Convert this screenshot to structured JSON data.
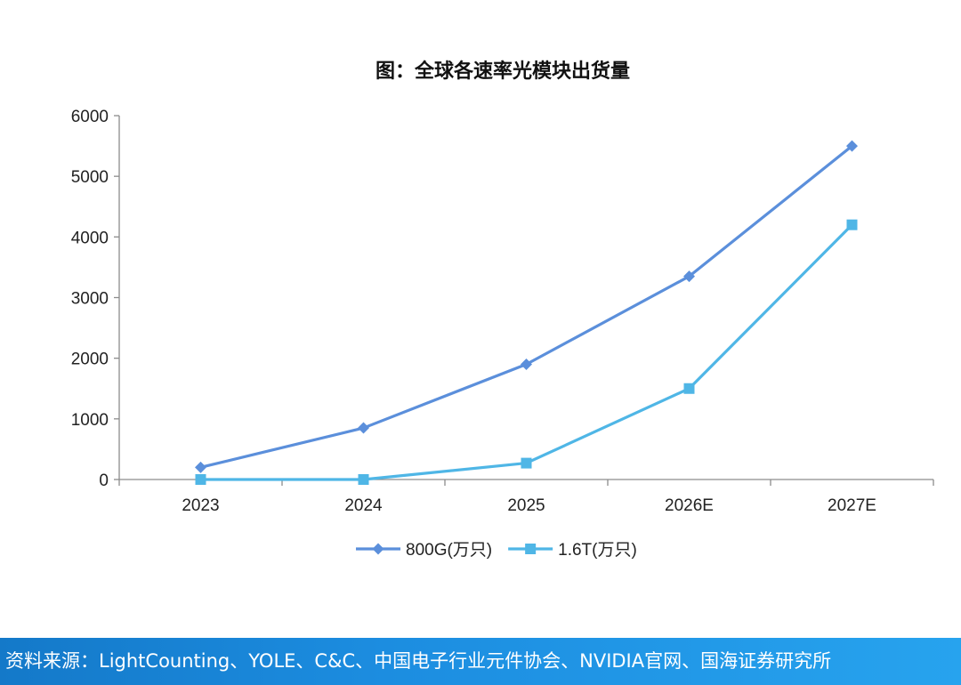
{
  "chart_data": {
    "type": "line",
    "title": "图：全球各速率光模块出货量",
    "categories": [
      "2023",
      "2024",
      "2025",
      "2026E",
      "2027E"
    ],
    "ylim": [
      0,
      6000
    ],
    "yticks": [
      0,
      1000,
      2000,
      3000,
      4000,
      5000,
      6000
    ],
    "grid": false,
    "legend_position": "bottom",
    "series": [
      {
        "name": "800G(万只)",
        "values": [
          200,
          850,
          1900,
          3350,
          5500
        ],
        "color": "#5B8FDB",
        "marker": "diamond"
      },
      {
        "name": "1.6T(万只)",
        "values": [
          0,
          0,
          270,
          1500,
          4200
        ],
        "color": "#4FB6E6",
        "marker": "square"
      }
    ]
  },
  "source": "资料来源：LightCounting、YOLE、C&C、中国电子行业元件协会、NVIDIA官网、国海证券研究所"
}
